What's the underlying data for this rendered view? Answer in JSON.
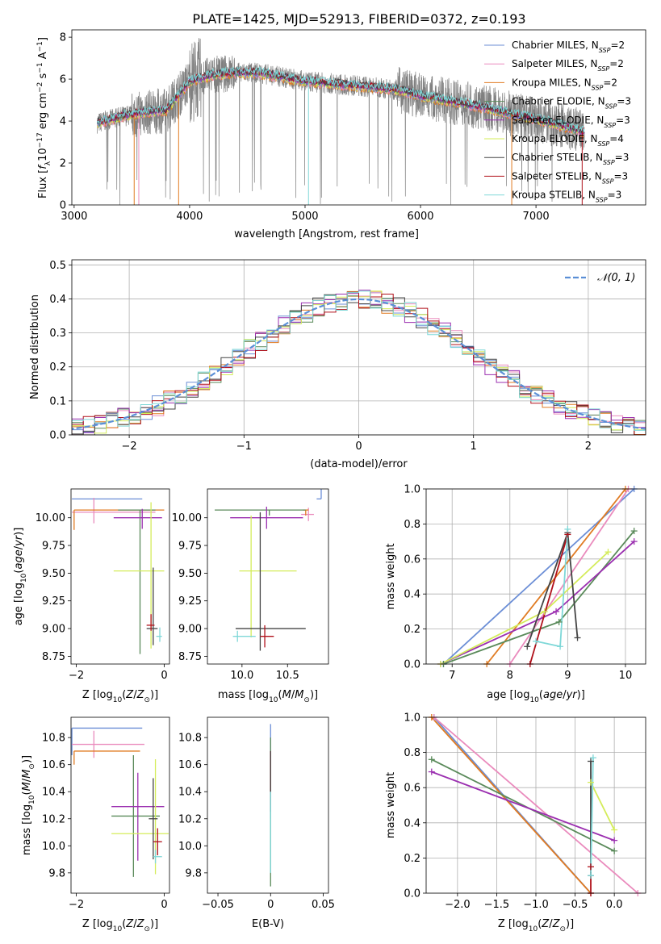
{
  "title": "PLATE=1425, MJD=52913, FIBERID=0372, z=0.193",
  "series": [
    {
      "name": "Chabrier MILES, N_SSP=2",
      "label_main": "Chabrier MILES, N",
      "label_sub": "SSP",
      "label_tail": "=2",
      "color": "#6b8ed6"
    },
    {
      "name": "Salpeter MILES, N_SSP=2",
      "label_main": "Salpeter MILES, N",
      "label_sub": "SSP",
      "label_tail": "=2",
      "color": "#ea8bbd"
    },
    {
      "name": "Kroupa MILES, N_SSP=2",
      "label_main": "Kroupa MILES, N",
      "label_sub": "SSP",
      "label_tail": "=2",
      "color": "#e07b22"
    },
    {
      "name": "Chabrier ELODIE, N_SSP=3",
      "label_main": "Chabrier ELODIE, N",
      "label_sub": "SSP",
      "label_tail": "=3",
      "color": "#5a8a5a"
    },
    {
      "name": "Salpeter ELODIE, N_SSP=3",
      "label_main": "Salpeter ELODIE, N",
      "label_sub": "SSP",
      "label_tail": "=3",
      "color": "#9b2fb0"
    },
    {
      "name": "Kroupa ELODIE, N_SSP=4",
      "label_main": "Kroupa ELODIE, N",
      "label_sub": "SSP",
      "label_tail": "=4",
      "color": "#d4ec5a"
    },
    {
      "name": "Chabrier STELIB, N_SSP=3",
      "label_main": "Chabrier STELIB, N",
      "label_sub": "SSP",
      "label_tail": "=3",
      "color": "#444444"
    },
    {
      "name": "Salpeter STELIB, N_SSP=3",
      "label_main": "Salpeter STELIB, N",
      "label_sub": "SSP",
      "label_tail": "=3",
      "color": "#b0101a"
    },
    {
      "name": "Kroupa STELIB, N_SSP=3",
      "label_main": "Kroupa STELIB, N",
      "label_sub": "SSP",
      "label_tail": "=3",
      "color": "#7fd8d8"
    }
  ],
  "chart_data": [
    {
      "id": "spectrum",
      "type": "line",
      "xlabel": "wavelength [Angstrom, rest frame]",
      "ylabel": "Flux [f_λ 10^-17 erg cm^-2 s^-1 A^-1]",
      "xlim": [
        2980,
        7950
      ],
      "ylim": [
        0,
        8.35
      ],
      "xticks": [
        3000,
        4000,
        5000,
        6000,
        7000
      ],
      "yticks": [
        0,
        2,
        4,
        6,
        8
      ],
      "grid": false,
      "legend": "top-right",
      "continuum_x": [
        3200,
        3400,
        3600,
        3800,
        4000,
        4200,
        4400,
        4600,
        4800,
        5000,
        5200,
        5400,
        5600,
        5800,
        6000,
        6200,
        6400,
        6600,
        6800,
        7000,
        7200,
        7400
      ],
      "continuum_y": [
        3.9,
        4.2,
        4.4,
        4.5,
        5.9,
        6.2,
        6.3,
        6.3,
        6.1,
        5.9,
        5.8,
        5.7,
        5.6,
        5.5,
        5.2,
        5.0,
        4.8,
        4.6,
        4.3,
        4.1,
        3.8,
        3.5
      ],
      "data_range": [
        3200,
        7420
      ]
    },
    {
      "id": "residuals",
      "type": "line",
      "xlabel": "(data-model)/error",
      "ylabel": "Normed distribution",
      "xlim": [
        -2.5,
        2.5
      ],
      "ylim": [
        0,
        0.515
      ],
      "xticks": [
        -2,
        -1,
        0,
        1,
        2
      ],
      "yticks": [
        0.0,
        0.1,
        0.2,
        0.3,
        0.4,
        0.5
      ],
      "grid": true,
      "legend": "top-right",
      "normal_label": "𝒩(0, 1)",
      "normal_color": "#5b8fd6",
      "bin_width": 0.1
    },
    {
      "id": "age_vs_Z",
      "type": "scatter",
      "xlabel": "Z [log10(Z/Z_sun)]",
      "ylabel": "age  [log10(age/yr)]",
      "xlim": [
        -2.12,
        0.12
      ],
      "ylim": [
        8.68,
        10.26
      ],
      "xticks": [
        -2,
        0
      ],
      "yticks": [
        8.75,
        9.0,
        9.25,
        9.5,
        9.75,
        10.0
      ],
      "points": [
        {
          "series": 0,
          "x": -2.1,
          "y": 10.17,
          "xe": [
            0,
            1.6
          ],
          "ye": [
            0,
            0
          ]
        },
        {
          "series": 1,
          "x": -1.6,
          "y": 10.05,
          "xe": [
            0.5,
            1.4
          ],
          "ye": [
            0.1,
            0.13
          ]
        },
        {
          "series": 2,
          "x": -2.05,
          "y": 10.07,
          "xe": [
            0,
            2.05
          ],
          "ye": [
            0.18,
            0
          ]
        },
        {
          "series": 3,
          "x": -0.55,
          "y": 10.07,
          "xe": [
            0.5,
            0.35
          ],
          "ye": [
            1.3,
            0.0
          ]
        },
        {
          "series": 4,
          "x": -0.5,
          "y": 10.0,
          "xe": [
            0.65,
            0.45
          ],
          "ye": [
            0.1,
            0.08
          ]
        },
        {
          "series": 5,
          "x": -0.3,
          "y": 9.52,
          "xe": [
            0.85,
            0.3
          ],
          "ye": [
            0.7,
            0.62
          ]
        },
        {
          "series": 6,
          "x": -0.25,
          "y": 9.0,
          "xe": [
            0.15,
            0.1
          ],
          "ye": [
            0.15,
            0.55
          ]
        },
        {
          "series": 7,
          "x": -0.3,
          "y": 9.03,
          "xe": [
            0.1,
            0.08
          ],
          "ye": [
            0.05,
            0.1
          ]
        },
        {
          "series": 8,
          "x": -0.1,
          "y": 8.93,
          "xe": [
            0.08,
            0.05
          ],
          "ye": [
            0.05,
            0.08
          ]
        }
      ]
    },
    {
      "id": "age_vs_mass",
      "type": "scatter",
      "xlabel": "mass [log10(M/M_sun)]",
      "ylabel": "",
      "xlim": [
        9.62,
        10.95
      ],
      "ylim": [
        8.68,
        10.26
      ],
      "xticks": [
        10.0,
        10.5
      ],
      "yticks": [
        8.75,
        9.0,
        9.25,
        9.5,
        9.75,
        10.0
      ],
      "points": [
        {
          "series": 0,
          "x": 10.87,
          "y": 10.17,
          "xe": [
            0.05,
            0.0
          ],
          "ye": [
            0,
            0.1
          ]
        },
        {
          "series": 1,
          "x": 10.73,
          "y": 10.03,
          "xe": [
            0.08,
            0.06
          ],
          "ye": [
            0.06,
            0.06
          ]
        },
        {
          "series": 2,
          "x": 10.7,
          "y": 10.07,
          "xe": [
            0.03,
            0.03
          ],
          "ye": [
            0.05,
            0
          ]
        },
        {
          "series": 3,
          "x": 10.3,
          "y": 10.07,
          "xe": [
            0.6,
            0.4
          ],
          "ye": [
            0.05,
            0
          ]
        },
        {
          "series": 4,
          "x": 10.27,
          "y": 10.0,
          "xe": [
            0.4,
            0.4
          ],
          "ye": [
            0.1,
            0.1
          ]
        },
        {
          "series": 5,
          "x": 10.1,
          "y": 9.52,
          "xe": [
            0.13,
            0.5
          ],
          "ye": [
            0.6,
            0.5
          ]
        },
        {
          "series": 6,
          "x": 10.2,
          "y": 9.0,
          "xe": [
            0.27,
            0.5
          ],
          "ye": [
            0.2,
            1.05
          ]
        },
        {
          "series": 7,
          "x": 10.25,
          "y": 8.93,
          "xe": [
            0.05,
            0.1
          ],
          "ye": [
            0.1,
            0.1
          ]
        },
        {
          "series": 8,
          "x": 9.95,
          "y": 8.93,
          "xe": [
            0.05,
            0.2
          ],
          "ye": [
            0.05,
            0.05
          ]
        }
      ]
    },
    {
      "id": "mass_weight_vs_age",
      "type": "line",
      "xlabel": "age  [log10(age/yr)]",
      "ylabel": "mass weight",
      "xlim": [
        6.55,
        10.35
      ],
      "ylim": [
        0,
        1
      ],
      "xticks": [
        7,
        8,
        9,
        10
      ],
      "yticks": [
        0.0,
        0.2,
        0.4,
        0.6,
        0.8,
        1.0
      ],
      "grid": true,
      "lines": [
        {
          "series": 0,
          "x": [
            6.85,
            10.15
          ],
          "y": [
            0.0,
            1.0
          ]
        },
        {
          "series": 1,
          "x": [
            8.0,
            10.05
          ],
          "y": [
            0.0,
            1.0
          ]
        },
        {
          "series": 2,
          "x": [
            7.6,
            10.0
          ],
          "y": [
            0.0,
            1.0
          ]
        },
        {
          "series": 3,
          "x": [
            6.85,
            8.85,
            10.15
          ],
          "y": [
            0.0,
            0.24,
            0.76
          ]
        },
        {
          "series": 4,
          "x": [
            6.8,
            8.8,
            10.15
          ],
          "y": [
            0.0,
            0.3,
            0.7
          ]
        },
        {
          "series": 5,
          "x": [
            6.8,
            8.6,
            9.7
          ],
          "y": [
            0.0,
            0.3,
            0.64
          ]
        },
        {
          "series": 6,
          "x": [
            8.3,
            9.0,
            9.17
          ],
          "y": [
            0.1,
            0.75,
            0.15
          ]
        },
        {
          "series": 7,
          "x": [
            8.35,
            9.0
          ],
          "y": [
            0.0,
            0.74
          ]
        },
        {
          "series": 8,
          "x": [
            8.45,
            8.87,
            9.0
          ],
          "y": [
            0.13,
            0.1,
            0.77
          ]
        }
      ]
    },
    {
      "id": "mass_vs_Z",
      "type": "scatter",
      "xlabel": "Z [log10(Z/Z_sun)]",
      "ylabel": "mass [log10(M/M_sun)]",
      "xlim": [
        -2.12,
        0.12
      ],
      "ylim": [
        9.65,
        10.95
      ],
      "xticks": [
        -2,
        0
      ],
      "yticks": [
        9.8,
        10.0,
        10.2,
        10.4,
        10.6,
        10.8
      ],
      "points": [
        {
          "series": 0,
          "x": -2.1,
          "y": 10.87,
          "xe": [
            0,
            1.6
          ],
          "ye": [
            0.2,
            0
          ]
        },
        {
          "series": 1,
          "x": -1.6,
          "y": 10.75,
          "xe": [
            0.5,
            1.15
          ],
          "ye": [
            0.1,
            0.1
          ]
        },
        {
          "series": 2,
          "x": -2.05,
          "y": 10.7,
          "xe": [
            0,
            1.5
          ],
          "ye": [
            0.1,
            0
          ]
        },
        {
          "series": 3,
          "x": -0.7,
          "y": 10.22,
          "xe": [
            0.5,
            0.6
          ],
          "ye": [
            0.45,
            0.45
          ]
        },
        {
          "series": 4,
          "x": -0.6,
          "y": 10.29,
          "xe": [
            0.6,
            0.6
          ],
          "ye": [
            0.4,
            0.25
          ]
        },
        {
          "series": 5,
          "x": -0.2,
          "y": 10.09,
          "xe": [
            1.0,
            0.3
          ],
          "ye": [
            0.3,
            0.55
          ]
        },
        {
          "series": 6,
          "x": -0.25,
          "y": 10.2,
          "xe": [
            0.1,
            0.1
          ],
          "ye": [
            0.3,
            0.3
          ]
        },
        {
          "series": 7,
          "x": -0.15,
          "y": 10.03,
          "xe": [
            0.1,
            0.1
          ],
          "ye": [
            0.1,
            0.1
          ]
        },
        {
          "series": 8,
          "x": -0.2,
          "y": 9.92,
          "xe": [
            0.05,
            0.15
          ],
          "ye": [
            0.05,
            0.05
          ]
        }
      ]
    },
    {
      "id": "mass_vs_ebv",
      "type": "scatter",
      "xlabel": "E(B-V)",
      "ylabel": "",
      "xlim": [
        -0.06,
        0.055
      ],
      "ylim": [
        9.65,
        10.95
      ],
      "xticks": [
        -0.05,
        0.0,
        0.05
      ],
      "yticks": [
        9.8,
        10.0,
        10.2,
        10.4,
        10.6,
        10.8
      ],
      "points": [
        {
          "series": 0,
          "x": 0.0,
          "y": 10.7,
          "xe": [
            0,
            0
          ],
          "ye": [
            0.5,
            0.2
          ]
        },
        {
          "series": 3,
          "x": 0.0,
          "y": 10.3,
          "xe": [
            0,
            0
          ],
          "ye": [
            0.6,
            0.5
          ]
        },
        {
          "series": 7,
          "x": 0.0,
          "y": 10.5,
          "xe": [
            0,
            0
          ],
          "ye": [
            0.2,
            0.2
          ]
        },
        {
          "series": 6,
          "x": 0.0,
          "y": 10.4,
          "xe": [
            0,
            0
          ],
          "ye": [
            0.15,
            0.3
          ]
        },
        {
          "series": 8,
          "x": 0.0,
          "y": 10.0,
          "xe": [
            0,
            0
          ],
          "ye": [
            0.2,
            0.4
          ]
        }
      ]
    },
    {
      "id": "mass_weight_vs_Z",
      "type": "line",
      "xlabel": "Z [log10(Z/Z_sun)]",
      "ylabel": "mass weight",
      "xlim": [
        -2.4,
        0.4
      ],
      "ylim": [
        0,
        1
      ],
      "xticks": [
        -2.0,
        -1.5,
        -1.0,
        -0.5,
        0.0
      ],
      "yticks": [
        0.0,
        0.2,
        0.4,
        0.6,
        0.8,
        1.0
      ],
      "grid": true,
      "lines": [
        {
          "series": 0,
          "x": [
            -2.3,
            -0.3
          ],
          "y": [
            1.0,
            0.0
          ]
        },
        {
          "series": 1,
          "x": [
            -2.3,
            0.3
          ],
          "y": [
            1.0,
            0.0
          ]
        },
        {
          "series": 2,
          "x": [
            -2.33,
            -0.3
          ],
          "y": [
            1.0,
            0.0
          ]
        },
        {
          "series": 3,
          "x": [
            -2.33,
            0.0
          ],
          "y": [
            0.76,
            0.24
          ]
        },
        {
          "series": 4,
          "x": [
            -2.33,
            0.0
          ],
          "y": [
            0.69,
            0.3
          ]
        },
        {
          "series": 5,
          "x": [
            -0.3,
            0.0
          ],
          "y": [
            0.63,
            0.36
          ]
        },
        {
          "series": 6,
          "x": [
            -0.3,
            -0.3
          ],
          "y": [
            0.1,
            0.75
          ]
        },
        {
          "series": 7,
          "x": [
            -0.3,
            -0.3
          ],
          "y": [
            0.0,
            0.15
          ]
        },
        {
          "series": 8,
          "x": [
            -0.3,
            -0.27
          ],
          "y": [
            0.1,
            0.77
          ]
        }
      ]
    }
  ]
}
